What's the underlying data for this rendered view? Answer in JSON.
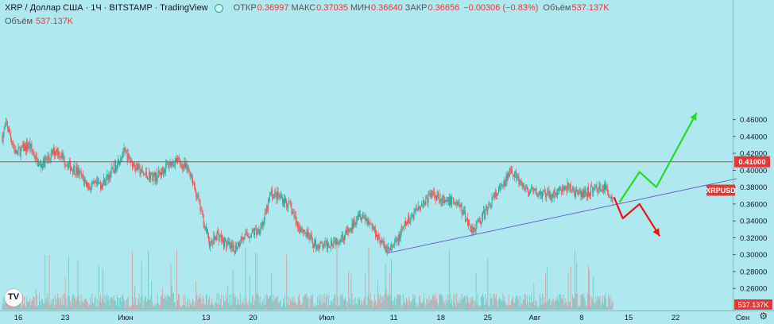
{
  "header": {
    "symbol": "XRP / Доллар США · 1Ч · BITSTAMP · TradingView",
    "open_label": "ОТКР",
    "open": "0.36997",
    "high_label": "МАКС",
    "high": "0.37035",
    "low_label": "МИН",
    "low": "0.36640",
    "close_label": "ЗАКР",
    "close": "0.36656",
    "change": "−0.00306 (−0.83%)",
    "vol_label": "Объём",
    "vol": "537.137K"
  },
  "volume_line": {
    "label": "Объём",
    "value": "537.137K"
  },
  "colors": {
    "background": "#afe9ef",
    "up": "#26a69a",
    "down": "#ef5350",
    "resistance": "#e53935",
    "trend": "#6f63d6",
    "green_arrow": "#22dd22",
    "red_arrow": "#ee1111"
  },
  "icons": {
    "logo": "tradingview-logo-icon",
    "settings": "gear-icon"
  },
  "chart_data": {
    "type": "candlestick",
    "symbol": "XRPUSD",
    "y_ticks": [
      0.26,
      0.28,
      0.3,
      0.32,
      0.34,
      0.36,
      0.38,
      0.4,
      0.42,
      0.44,
      0.46
    ],
    "y_tick_labels": [
      "0.26000",
      "0.28000",
      "0.30000",
      "0.32000",
      "0.34000",
      "0.36000",
      "0.38000",
      "0.40000",
      "0.42000",
      "0.44000",
      "0.46000"
    ],
    "x_ticks": [
      {
        "label": "16",
        "day": 0
      },
      {
        "label": "23",
        "day": 7
      },
      {
        "label": "Июн",
        "day": 16
      },
      {
        "label": "13",
        "day": 28
      },
      {
        "label": "20",
        "day": 35
      },
      {
        "label": "Июл",
        "day": 46
      },
      {
        "label": "11",
        "day": 56
      },
      {
        "label": "18",
        "day": 63
      },
      {
        "label": "25",
        "day": 70
      },
      {
        "label": "Авг",
        "day": 77
      },
      {
        "label": "8",
        "day": 84
      },
      {
        "label": "15",
        "day": 91
      },
      {
        "label": "22",
        "day": 98
      },
      {
        "label": "Сен",
        "day": 108
      }
    ],
    "resistance_level": 0.41,
    "resistance_label": "0.41000",
    "last_price_label": "XRPUSD",
    "last_price_value": 0.366,
    "volume_label": "537.137K",
    "trendline": [
      {
        "day": 57.5,
        "price": 0.302
      },
      {
        "day": 109.5,
        "price": 0.39
      }
    ],
    "close_path": [
      {
        "day": 0,
        "price": 0.44
      },
      {
        "day": 0.6,
        "price": 0.455
      },
      {
        "day": 2,
        "price": 0.42
      },
      {
        "day": 4,
        "price": 0.43
      },
      {
        "day": 5.5,
        "price": 0.405
      },
      {
        "day": 7,
        "price": 0.415
      },
      {
        "day": 8,
        "price": 0.425
      },
      {
        "day": 10,
        "price": 0.405
      },
      {
        "day": 11,
        "price": 0.4
      },
      {
        "day": 13,
        "price": 0.38
      },
      {
        "day": 15,
        "price": 0.385
      },
      {
        "day": 16.5,
        "price": 0.4
      },
      {
        "day": 18,
        "price": 0.422
      },
      {
        "day": 19,
        "price": 0.412
      },
      {
        "day": 21,
        "price": 0.395
      },
      {
        "day": 23,
        "price": 0.392
      },
      {
        "day": 24.5,
        "price": 0.405
      },
      {
        "day": 26,
        "price": 0.412
      },
      {
        "day": 27,
        "price": 0.405
      },
      {
        "day": 28,
        "price": 0.398
      },
      {
        "day": 29,
        "price": 0.37
      },
      {
        "day": 30,
        "price": 0.34
      },
      {
        "day": 31,
        "price": 0.31
      },
      {
        "day": 32,
        "price": 0.325
      },
      {
        "day": 33,
        "price": 0.315
      },
      {
        "day": 34.5,
        "price": 0.305
      },
      {
        "day": 35.5,
        "price": 0.318
      },
      {
        "day": 37,
        "price": 0.325
      },
      {
        "day": 38,
        "price": 0.328
      },
      {
        "day": 39,
        "price": 0.34
      },
      {
        "day": 40,
        "price": 0.372
      },
      {
        "day": 41,
        "price": 0.37
      },
      {
        "day": 42,
        "price": 0.365
      },
      {
        "day": 43,
        "price": 0.355
      },
      {
        "day": 44,
        "price": 0.335
      },
      {
        "day": 45,
        "price": 0.328
      },
      {
        "day": 46.5,
        "price": 0.312
      },
      {
        "day": 48,
        "price": 0.31
      },
      {
        "day": 49,
        "price": 0.315
      },
      {
        "day": 50.5,
        "price": 0.32
      },
      {
        "day": 52,
        "price": 0.33
      },
      {
        "day": 53,
        "price": 0.35
      },
      {
        "day": 54,
        "price": 0.345
      },
      {
        "day": 55,
        "price": 0.335
      },
      {
        "day": 56,
        "price": 0.322
      },
      {
        "day": 57,
        "price": 0.308
      },
      {
        "day": 58,
        "price": 0.306
      },
      {
        "day": 59,
        "price": 0.318
      },
      {
        "day": 60,
        "price": 0.335
      },
      {
        "day": 61,
        "price": 0.345
      },
      {
        "day": 62,
        "price": 0.358
      },
      {
        "day": 63,
        "price": 0.363
      },
      {
        "day": 64,
        "price": 0.372
      },
      {
        "day": 65,
        "price": 0.37
      },
      {
        "day": 66,
        "price": 0.36
      },
      {
        "day": 67,
        "price": 0.365
      },
      {
        "day": 68,
        "price": 0.36
      },
      {
        "day": 69,
        "price": 0.345
      },
      {
        "day": 70,
        "price": 0.33
      },
      {
        "day": 71,
        "price": 0.338
      },
      {
        "day": 72,
        "price": 0.35
      },
      {
        "day": 73,
        "price": 0.365
      },
      {
        "day": 74,
        "price": 0.375
      },
      {
        "day": 75,
        "price": 0.385
      },
      {
        "day": 75.8,
        "price": 0.405
      },
      {
        "day": 76.5,
        "price": 0.393
      },
      {
        "day": 77.5,
        "price": 0.38
      },
      {
        "day": 78.5,
        "price": 0.375
      },
      {
        "day": 80,
        "price": 0.372
      },
      {
        "day": 81.5,
        "price": 0.37
      },
      {
        "day": 83,
        "price": 0.375
      },
      {
        "day": 84.5,
        "price": 0.38
      },
      {
        "day": 86,
        "price": 0.37
      },
      {
        "day": 87.5,
        "price": 0.375
      },
      {
        "day": 89,
        "price": 0.38
      },
      {
        "day": 90,
        "price": 0.378
      },
      {
        "day": 91,
        "price": 0.366
      }
    ],
    "arrows": [
      {
        "color": "green",
        "path": [
          {
            "day": 92,
            "price": 0.362
          },
          {
            "day": 95,
            "price": 0.398
          },
          {
            "day": 97.5,
            "price": 0.38
          },
          {
            "day": 103.5,
            "price": 0.468
          }
        ]
      },
      {
        "color": "red",
        "path": [
          {
            "day": 91.2,
            "price": 0.368
          },
          {
            "day": 92.5,
            "price": 0.343
          },
          {
            "day": 95,
            "price": 0.36
          },
          {
            "day": 98,
            "price": 0.322
          }
        ]
      }
    ]
  }
}
